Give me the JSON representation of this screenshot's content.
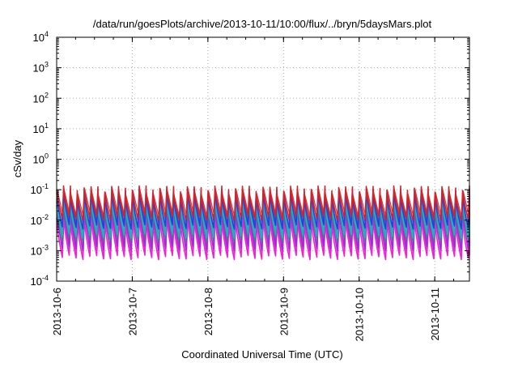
{
  "chart_data": {
    "type": "line",
    "title": "/data/run/goesPlots/archive/2013-10-11/10:00/flux/../bryn/5daysMars.plot",
    "xlabel": "Coordinated Universal Time (UTC)",
    "ylabel": "cSv/day",
    "y_scale": "log",
    "ylim_exponents": [
      -4,
      4
    ],
    "y_ticks": [
      {
        "base": "10",
        "exp": "-4"
      },
      {
        "base": "10",
        "exp": "-3"
      },
      {
        "base": "10",
        "exp": "-2"
      },
      {
        "base": "10",
        "exp": "-1"
      },
      {
        "base": "10",
        "exp": "0"
      },
      {
        "base": "10",
        "exp": "1"
      },
      {
        "base": "10",
        "exp": "2"
      },
      {
        "base": "10",
        "exp": "3"
      },
      {
        "base": "10",
        "exp": "4"
      }
    ],
    "xlim": [
      "2013-10-06T00:00",
      "2013-10-11T11:00"
    ],
    "x_tick_labels": [
      "2013-10-6",
      "2013-10-7",
      "2013-10-8",
      "2013-10-9",
      "2013-10-10",
      "2013-10-11"
    ],
    "grid": true,
    "sawtooth_cycles": 60,
    "series": [
      {
        "color": "#d2232a",
        "peak": 0.1,
        "trough": 0.012
      },
      {
        "color": "#2e3cd8",
        "peak": 0.08,
        "trough": 0.006
      },
      {
        "color": "#1fb0c8",
        "peak": 0.05,
        "trough": 0.003
      },
      {
        "color": "#1a9a60",
        "peak": 0.04,
        "trough": 0.0025
      },
      {
        "color": "#9b2fd0",
        "peak": 0.03,
        "trough": 0.0012
      },
      {
        "color": "#ee22d6",
        "peak": 0.012,
        "trough": 0.0006
      }
    ]
  }
}
